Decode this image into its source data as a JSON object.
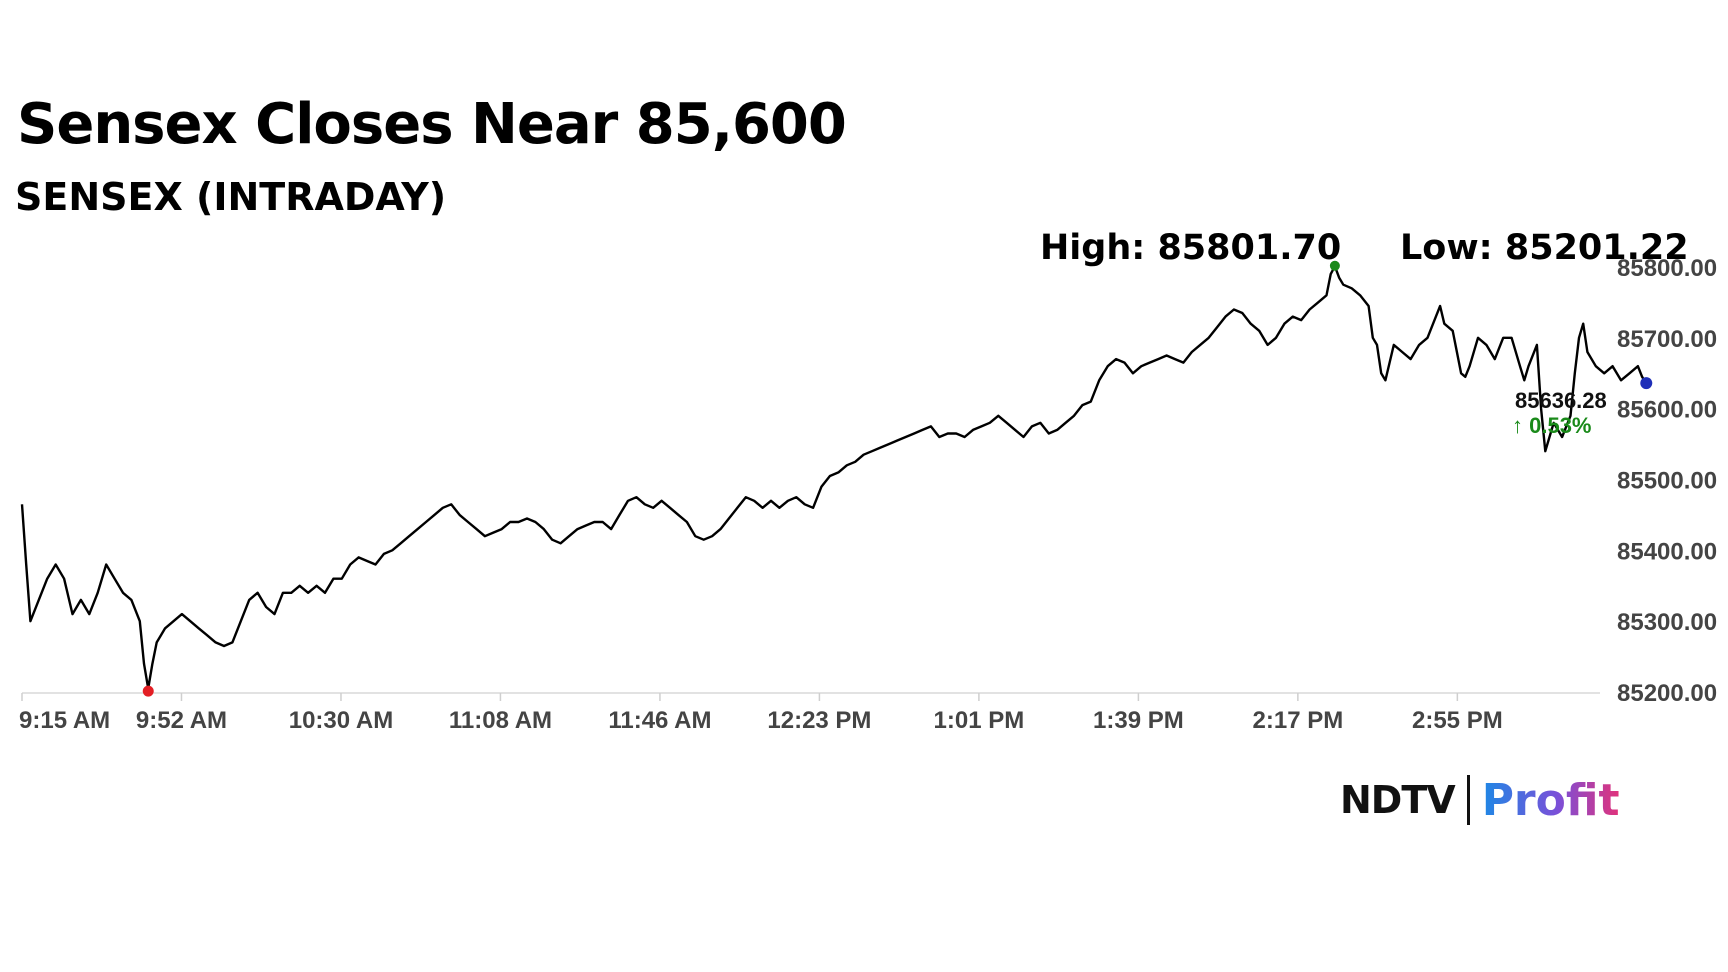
{
  "header": {
    "title": "Sensex Closes Near 85,600",
    "subtitle": "SENSEX (INTRADAY)",
    "high_label": "High: 85801.70",
    "low_label": "Low: 85201.22"
  },
  "logo": {
    "ndtv": "NDTV",
    "profit": "Profit"
  },
  "chart_data": {
    "type": "line",
    "title": "Sensex Closes Near 85,600",
    "subtitle": "SENSEX (INTRADAY)",
    "x_tick_labels": [
      "9:15 AM",
      "9:52 AM",
      "10:30 AM",
      "11:08 AM",
      "11:46 AM",
      "12:23 PM",
      "1:01 PM",
      "1:39 PM",
      "2:17 PM",
      "2:55 PM"
    ],
    "y_tick_values": [
      85200,
      85300,
      85400,
      85500,
      85600,
      85700,
      85800
    ],
    "y_tick_labels": [
      "85200.00",
      "85300.00",
      "85400.00",
      "85500.00",
      "85600.00",
      "85700.00",
      "85800.00"
    ],
    "ylim": [
      85200,
      85800
    ],
    "xlim_minutes": [
      0,
      375
    ],
    "series": [
      {
        "points": [
          [
            0,
            85465
          ],
          [
            1,
            85380
          ],
          [
            2,
            85300
          ],
          [
            4,
            85330
          ],
          [
            6,
            85360
          ],
          [
            8,
            85380
          ],
          [
            10,
            85360
          ],
          [
            12,
            85310
          ],
          [
            14,
            85330
          ],
          [
            16,
            85310
          ],
          [
            18,
            85340
          ],
          [
            20,
            85380
          ],
          [
            22,
            85360
          ],
          [
            24,
            85340
          ],
          [
            26,
            85330
          ],
          [
            28,
            85300
          ],
          [
            29,
            85240
          ],
          [
            30,
            85205
          ],
          [
            31,
            85240
          ],
          [
            32,
            85270
          ],
          [
            34,
            85290
          ],
          [
            36,
            85300
          ],
          [
            38,
            85310
          ],
          [
            40,
            85300
          ],
          [
            42,
            85290
          ],
          [
            44,
            85280
          ],
          [
            46,
            85270
          ],
          [
            48,
            85265
          ],
          [
            50,
            85270
          ],
          [
            52,
            85300
          ],
          [
            54,
            85330
          ],
          [
            56,
            85340
          ],
          [
            58,
            85320
          ],
          [
            60,
            85310
          ],
          [
            62,
            85340
          ],
          [
            64,
            85340
          ],
          [
            66,
            85350
          ],
          [
            68,
            85340
          ],
          [
            70,
            85350
          ],
          [
            72,
            85340
          ],
          [
            74,
            85360
          ],
          [
            76,
            85360
          ],
          [
            78,
            85380
          ],
          [
            80,
            85390
          ],
          [
            82,
            85385
          ],
          [
            84,
            85380
          ],
          [
            86,
            85395
          ],
          [
            88,
            85400
          ],
          [
            90,
            85410
          ],
          [
            92,
            85420
          ],
          [
            94,
            85430
          ],
          [
            96,
            85440
          ],
          [
            98,
            85450
          ],
          [
            100,
            85460
          ],
          [
            102,
            85465
          ],
          [
            104,
            85450
          ],
          [
            106,
            85440
          ],
          [
            108,
            85430
          ],
          [
            110,
            85420
          ],
          [
            112,
            85425
          ],
          [
            114,
            85430
          ],
          [
            116,
            85440
          ],
          [
            118,
            85440
          ],
          [
            120,
            85445
          ],
          [
            122,
            85440
          ],
          [
            124,
            85430
          ],
          [
            126,
            85415
          ],
          [
            128,
            85410
          ],
          [
            130,
            85420
          ],
          [
            132,
            85430
          ],
          [
            134,
            85435
          ],
          [
            136,
            85440
          ],
          [
            138,
            85440
          ],
          [
            140,
            85430
          ],
          [
            142,
            85450
          ],
          [
            144,
            85470
          ],
          [
            146,
            85475
          ],
          [
            148,
            85465
          ],
          [
            150,
            85460
          ],
          [
            152,
            85470
          ],
          [
            154,
            85460
          ],
          [
            156,
            85450
          ],
          [
            158,
            85440
          ],
          [
            160,
            85420
          ],
          [
            162,
            85415
          ],
          [
            164,
            85420
          ],
          [
            166,
            85430
          ],
          [
            168,
            85445
          ],
          [
            170,
            85460
          ],
          [
            172,
            85475
          ],
          [
            174,
            85470
          ],
          [
            176,
            85460
          ],
          [
            178,
            85470
          ],
          [
            180,
            85460
          ],
          [
            182,
            85470
          ],
          [
            184,
            85475
          ],
          [
            186,
            85465
          ],
          [
            188,
            85460
          ],
          [
            190,
            85490
          ],
          [
            192,
            85505
          ],
          [
            194,
            85510
          ],
          [
            196,
            85520
          ],
          [
            198,
            85525
          ],
          [
            200,
            85535
          ],
          [
            202,
            85540
          ],
          [
            204,
            85545
          ],
          [
            206,
            85550
          ],
          [
            208,
            85555
          ],
          [
            210,
            85560
          ],
          [
            212,
            85565
          ],
          [
            214,
            85570
          ],
          [
            216,
            85575
          ],
          [
            218,
            85560
          ],
          [
            220,
            85565
          ],
          [
            222,
            85565
          ],
          [
            224,
            85560
          ],
          [
            226,
            85570
          ],
          [
            228,
            85575
          ],
          [
            230,
            85580
          ],
          [
            232,
            85590
          ],
          [
            234,
            85580
          ],
          [
            236,
            85570
          ],
          [
            238,
            85560
          ],
          [
            240,
            85575
          ],
          [
            242,
            85580
          ],
          [
            244,
            85565
          ],
          [
            246,
            85570
          ],
          [
            248,
            85580
          ],
          [
            250,
            85590
          ],
          [
            252,
            85605
          ],
          [
            254,
            85610
          ],
          [
            256,
            85640
          ],
          [
            258,
            85660
          ],
          [
            260,
            85670
          ],
          [
            262,
            85665
          ],
          [
            264,
            85650
          ],
          [
            266,
            85660
          ],
          [
            268,
            85665
          ],
          [
            270,
            85670
          ],
          [
            272,
            85675
          ],
          [
            274,
            85670
          ],
          [
            276,
            85665
          ],
          [
            278,
            85680
          ],
          [
            280,
            85690
          ],
          [
            282,
            85700
          ],
          [
            284,
            85715
          ],
          [
            286,
            85730
          ],
          [
            288,
            85740
          ],
          [
            290,
            85735
          ],
          [
            292,
            85720
          ],
          [
            294,
            85710
          ],
          [
            296,
            85690
          ],
          [
            298,
            85700
          ],
          [
            300,
            85720
          ],
          [
            302,
            85730
          ],
          [
            304,
            85725
          ],
          [
            306,
            85740
          ],
          [
            308,
            85750
          ],
          [
            310,
            85760
          ],
          [
            311,
            85790
          ],
          [
            312,
            85801
          ],
          [
            313,
            85785
          ],
          [
            314,
            85775
          ],
          [
            316,
            85770
          ],
          [
            318,
            85760
          ],
          [
            320,
            85745
          ],
          [
            321,
            85700
          ],
          [
            322,
            85690
          ],
          [
            323,
            85650
          ],
          [
            324,
            85640
          ],
          [
            325,
            85665
          ],
          [
            326,
            85690
          ],
          [
            328,
            85680
          ],
          [
            330,
            85670
          ],
          [
            332,
            85690
          ],
          [
            334,
            85700
          ],
          [
            336,
            85730
          ],
          [
            337,
            85745
          ],
          [
            338,
            85720
          ],
          [
            340,
            85710
          ],
          [
            341,
            85680
          ],
          [
            342,
            85650
          ],
          [
            343,
            85645
          ],
          [
            344,
            85660
          ],
          [
            346,
            85700
          ],
          [
            348,
            85690
          ],
          [
            350,
            85670
          ],
          [
            352,
            85700
          ],
          [
            354,
            85700
          ],
          [
            356,
            85660
          ],
          [
            357,
            85640
          ],
          [
            358,
            85660
          ],
          [
            360,
            85690
          ],
          [
            361,
            85600
          ],
          [
            362,
            85540
          ],
          [
            363,
            85560
          ],
          [
            364,
            85580
          ],
          [
            365,
            85570
          ],
          [
            366,
            85560
          ],
          [
            368,
            85590
          ],
          [
            369,
            85650
          ],
          [
            370,
            85700
          ],
          [
            371,
            85720
          ],
          [
            372,
            85680
          ],
          [
            374,
            85660
          ],
          [
            376,
            85650
          ],
          [
            378,
            85660
          ],
          [
            380,
            85640
          ],
          [
            382,
            85650
          ],
          [
            384,
            85660
          ],
          [
            385,
            85645
          ],
          [
            386,
            85636
          ]
        ]
      }
    ],
    "high": {
      "time_minutes": 312,
      "value": 85801.7,
      "label": "High: 85801.70"
    },
    "low": {
      "time_minutes": 30,
      "value": 85201.22,
      "label": "Low: 85201.22"
    },
    "last": {
      "value_label": "85636.28",
      "change_label": "↑ 0.53%"
    },
    "colors": {
      "line": "#000000",
      "high_marker": "#1a8a1a",
      "low_marker": "#e31e24",
      "last_marker": "#1f2fb8",
      "change_text": "#1a8a1a"
    },
    "grid": false
  }
}
